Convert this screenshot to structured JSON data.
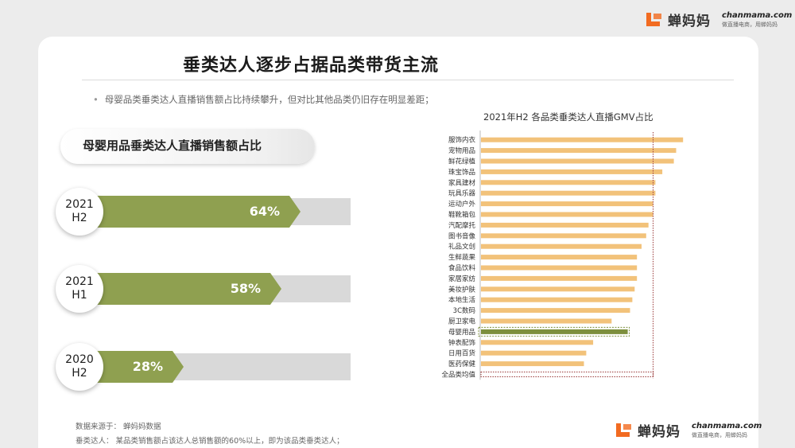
{
  "brand": {
    "name": "蝉妈妈",
    "site": "chanmama.com",
    "tagline": "做直播电商，用蝉妈妈",
    "accent": "#f26b21"
  },
  "header": {
    "title": "垂类达人逐步占据品类带货主流",
    "bullet": "母婴品类垂类达人直播销售额占比持续攀升，但对比其他品类仍旧存在明显差距；"
  },
  "left": {
    "heading": "母婴用品垂类达人直播销售额占比",
    "arrow_color": "#8fa050",
    "stats": [
      {
        "period_line1": "2021",
        "period_line2": "H2",
        "label": "64%",
        "value": 0.64
      },
      {
        "period_line1": "2021",
        "period_line2": "H1",
        "label": "58%",
        "value": 0.58
      },
      {
        "period_line1": "2020",
        "period_line2": "H2",
        "label": "28%",
        "value": 0.28
      }
    ]
  },
  "chart_data": {
    "type": "bar",
    "orientation": "horizontal",
    "title": "2021年H2 各品类垂类达人直播GMV占比",
    "categories": [
      "服饰内衣",
      "宠物用品",
      "鲜花绿植",
      "珠宝饰品",
      "家具建材",
      "玩具乐器",
      "运动户外",
      "鞋靴箱包",
      "汽配摩托",
      "图书音像",
      "礼品文创",
      "生鲜蔬果",
      "食品饮料",
      "家居家纺",
      "美妆护肤",
      "本地生活",
      "3C数码",
      "厨卫家电",
      "母婴用品",
      "钟表配饰",
      "日用百货",
      "医药保健",
      "全品类均值"
    ],
    "values": [
      0.88,
      0.85,
      0.84,
      0.79,
      0.76,
      0.76,
      0.75,
      0.75,
      0.73,
      0.72,
      0.7,
      0.68,
      0.68,
      0.68,
      0.67,
      0.66,
      0.65,
      0.57,
      0.64,
      0.49,
      0.46,
      0.45,
      0.75
    ],
    "highlight": [
      "母婴用品",
      "全品类均值"
    ],
    "reference_line": 0.75,
    "xlim": [
      0,
      1
    ],
    "bar_color": "#f2c27a",
    "highlight_color": "#7d8f3d",
    "axis_labels": false,
    "grid": false
  },
  "footnotes": {
    "source": "数据来源于： 蝉妈妈数据",
    "definition": "垂类达人： 某品类销售额占该达人总销售额的60%以上，即为该品类垂类达人；"
  }
}
